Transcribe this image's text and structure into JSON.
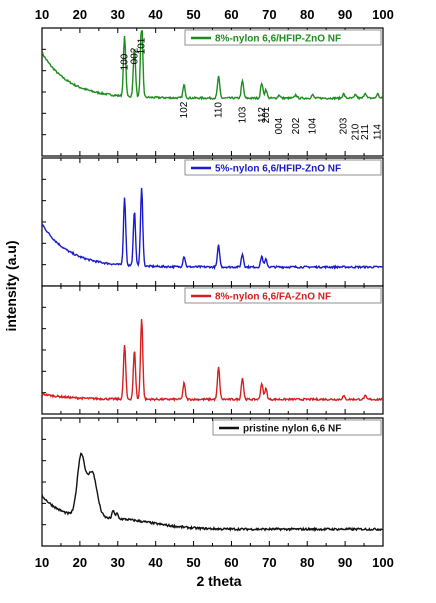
{
  "chart_data": {
    "type": "line",
    "xlabel": "2 theta",
    "ylabel": "intensity (a.u)",
    "xlim": [
      10,
      100
    ],
    "xticks": [
      10,
      20,
      30,
      40,
      50,
      60,
      70,
      80,
      90,
      100
    ],
    "panels": [
      {
        "name": "8%-nylon 6,6/HFIP-ZnO NF",
        "color": "#1e8c1e",
        "baseline": 0.48,
        "decay": 0.42,
        "hump": 0.0,
        "noise": 0.018,
        "peaks": [
          {
            "x": 31.8,
            "h": 0.55
          },
          {
            "x": 34.4,
            "h": 0.45
          },
          {
            "x": 36.3,
            "h": 0.72
          },
          {
            "x": 47.5,
            "h": 0.12
          },
          {
            "x": 56.6,
            "h": 0.2
          },
          {
            "x": 62.9,
            "h": 0.16
          },
          {
            "x": 68.0,
            "h": 0.14
          },
          {
            "x": 69.1,
            "h": 0.08
          },
          {
            "x": 72.6,
            "h": 0.03
          },
          {
            "x": 77.0,
            "h": 0.03
          },
          {
            "x": 81.4,
            "h": 0.03
          },
          {
            "x": 89.6,
            "h": 0.04
          },
          {
            "x": 92.8,
            "h": 0.03
          },
          {
            "x": 95.3,
            "h": 0.05
          },
          {
            "x": 98.6,
            "h": 0.04
          }
        ],
        "peak_labels": [
          {
            "text": "100",
            "x": 31.8
          },
          {
            "text": "002",
            "x": 34.4
          },
          {
            "text": "101",
            "x": 36.3
          },
          {
            "text": "102",
            "x": 47.5
          },
          {
            "text": "110",
            "x": 56.6
          },
          {
            "text": "103",
            "x": 62.9
          },
          {
            "text": "112",
            "x": 68.0
          },
          {
            "text": "201",
            "x": 69.1
          },
          {
            "text": "004",
            "x": 72.6
          },
          {
            "text": "202",
            "x": 77.0
          },
          {
            "text": "104",
            "x": 81.4
          },
          {
            "text": "203",
            "x": 89.6
          },
          {
            "text": "210",
            "x": 92.8
          },
          {
            "text": "211",
            "x": 95.3
          },
          {
            "text": "114",
            "x": 98.6
          }
        ]
      },
      {
        "name": "5%-nylon 6,6/HFIP-ZnO NF",
        "color": "#1a1acc",
        "baseline": 0.12,
        "decay": 0.4,
        "hump": 0.0,
        "noise": 0.018,
        "peaks": [
          {
            "x": 31.8,
            "h": 0.62
          },
          {
            "x": 34.4,
            "h": 0.5
          },
          {
            "x": 36.3,
            "h": 0.72
          },
          {
            "x": 47.5,
            "h": 0.1
          },
          {
            "x": 56.6,
            "h": 0.2
          },
          {
            "x": 62.9,
            "h": 0.12
          },
          {
            "x": 68.0,
            "h": 0.1
          },
          {
            "x": 69.1,
            "h": 0.07
          }
        ]
      },
      {
        "name": "8%-nylon 6,6/FA-ZnO NF",
        "color": "#d42020",
        "baseline": 0.08,
        "decay": 0.05,
        "hump": 0.0,
        "noise": 0.018,
        "peaks": [
          {
            "x": 31.8,
            "h": 0.5
          },
          {
            "x": 34.4,
            "h": 0.45
          },
          {
            "x": 36.3,
            "h": 0.75
          },
          {
            "x": 47.5,
            "h": 0.15
          },
          {
            "x": 56.6,
            "h": 0.3
          },
          {
            "x": 62.9,
            "h": 0.2
          },
          {
            "x": 68.0,
            "h": 0.15
          },
          {
            "x": 69.1,
            "h": 0.1
          },
          {
            "x": 89.6,
            "h": 0.03
          },
          {
            "x": 95.3,
            "h": 0.03
          }
        ]
      },
      {
        "name": "pristine nylon 6,6 NF",
        "color": "#111111",
        "baseline": 0.1,
        "decay": 0.3,
        "hump": 1.0,
        "noise": 0.02,
        "peaks": [
          {
            "x": 20.3,
            "h": 0.55,
            "w": 1.4
          },
          {
            "x": 23.2,
            "h": 0.42,
            "w": 1.8
          },
          {
            "x": 28.8,
            "h": 0.08,
            "w": 0.4
          },
          {
            "x": 29.8,
            "h": 0.05,
            "w": 0.4
          }
        ]
      }
    ]
  }
}
